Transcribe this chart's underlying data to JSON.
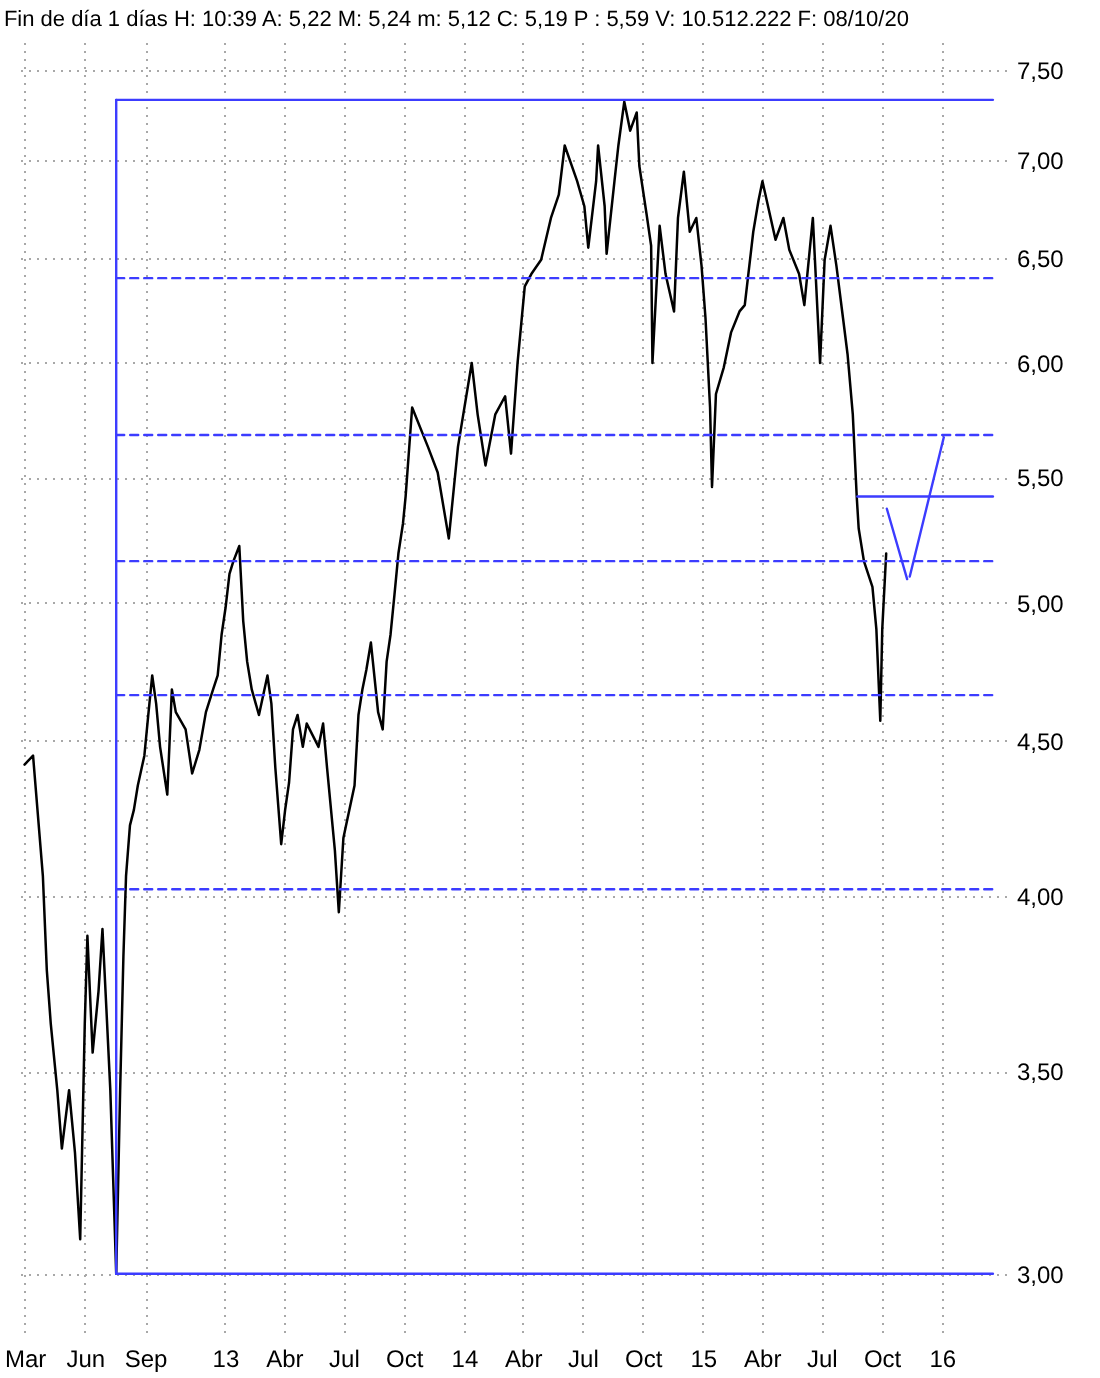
{
  "chart_data": {
    "type": "line",
    "title": "Fin de día 1 días  H: 10:39  A: 5,22  M: 5,24  m: 5,12  C: 5,19  P : 5,59  V: 10.512.222  F: 08/10/20",
    "x": [
      "2012-03-01",
      "2012-03-14",
      "2012-03-29",
      "2012-04-04",
      "2012-04-10",
      "2012-04-20",
      "2012-04-27",
      "2012-05-08",
      "2012-05-17",
      "2012-05-25",
      "2012-06-01",
      "2012-06-05",
      "2012-06-13",
      "2012-06-22",
      "2012-06-28",
      "2012-07-04",
      "2012-07-10",
      "2012-07-19",
      "2012-07-25",
      "2012-07-30",
      "2012-08-03",
      "2012-08-09",
      "2012-08-15",
      "2012-08-21",
      "2012-08-31",
      "2012-09-06",
      "2012-09-12",
      "2012-09-18",
      "2012-09-24",
      "2012-10-05",
      "2012-10-12",
      "2012-10-18",
      "2012-11-02",
      "2012-11-12",
      "2012-11-23",
      "2012-12-03",
      "2012-12-14",
      "2012-12-21",
      "2012-12-27",
      "2013-01-02",
      "2013-01-08",
      "2013-01-14",
      "2013-01-23",
      "2013-01-29",
      "2013-02-04",
      "2013-02-11",
      "2013-02-22",
      "2013-03-07",
      "2013-03-13",
      "2013-03-19",
      "2013-03-28",
      "2013-04-03",
      "2013-04-09",
      "2013-04-15",
      "2013-04-22",
      "2013-04-30",
      "2013-05-06",
      "2013-05-24",
      "2013-05-31",
      "2013-06-06",
      "2013-06-18",
      "2013-06-24",
      "2013-07-01",
      "2013-07-05",
      "2013-07-18",
      "2013-07-24",
      "2013-07-30",
      "2013-08-05",
      "2013-08-12",
      "2013-08-23",
      "2013-08-30",
      "2013-09-05",
      "2013-09-11",
      "2013-09-17",
      "2013-09-23",
      "2013-09-30",
      "2013-10-04",
      "2013-10-14",
      "2013-11-07",
      "2013-11-22",
      "2013-12-09",
      "2013-12-23",
      "2014-01-13",
      "2014-01-22",
      "2014-02-03",
      "2014-02-18",
      "2014-03-05",
      "2014-03-14",
      "2014-03-24",
      "2014-04-04",
      "2014-04-14",
      "2014-04-29",
      "2014-05-14",
      "2014-05-26",
      "2014-06-04",
      "2014-06-23",
      "2014-07-04",
      "2014-07-10",
      "2014-07-22",
      "2014-07-25",
      "2014-08-04",
      "2014-08-07",
      "2014-08-19",
      "2014-08-25",
      "2014-09-03",
      "2014-09-12",
      "2014-09-22",
      "2014-09-26",
      "2014-10-07",
      "2014-10-14",
      "2014-10-16",
      "2014-10-27",
      "2014-11-05",
      "2014-11-18",
      "2014-11-24",
      "2014-12-03",
      "2014-12-12",
      "2014-12-22",
      "2014-12-30",
      "2015-01-05",
      "2015-01-12",
      "2015-01-15",
      "2015-01-21",
      "2015-02-02",
      "2015-02-13",
      "2015-02-26",
      "2015-03-06",
      "2015-03-19",
      "2015-03-27",
      "2015-04-02",
      "2015-04-22",
      "2015-05-04",
      "2015-05-13",
      "2015-05-28",
      "2015-06-05",
      "2015-06-18",
      "2015-06-29",
      "2015-07-06",
      "2015-07-15",
      "2015-07-24",
      "2015-08-03",
      "2015-08-10",
      "2015-08-18",
      "2015-08-24",
      "2015-08-27",
      "2015-09-04",
      "2015-09-17",
      "2015-09-23",
      "2015-09-29",
      "2015-10-02",
      "2015-10-08"
    ],
    "series": [
      {
        "color": "#000000",
        "values": [
          4.42,
          4.45,
          4.06,
          3.78,
          3.63,
          3.45,
          3.3,
          3.45,
          3.29,
          3.08,
          3.63,
          3.88,
          3.55,
          3.72,
          3.9,
          3.67,
          3.45,
          3.0,
          3.45,
          3.82,
          4.06,
          4.22,
          4.27,
          4.35,
          4.45,
          4.59,
          4.73,
          4.63,
          4.48,
          4.32,
          4.68,
          4.6,
          4.54,
          4.39,
          4.47,
          4.6,
          4.68,
          4.73,
          4.88,
          4.98,
          5.11,
          5.16,
          5.22,
          4.93,
          4.78,
          4.68,
          4.59,
          4.73,
          4.63,
          4.41,
          4.16,
          4.27,
          4.36,
          4.54,
          4.59,
          4.48,
          4.56,
          4.48,
          4.56,
          4.41,
          4.14,
          3.95,
          4.18,
          4.22,
          4.35,
          4.59,
          4.68,
          4.75,
          4.85,
          4.6,
          4.54,
          4.78,
          4.88,
          5.03,
          5.19,
          5.31,
          5.42,
          5.8,
          5.63,
          5.52,
          5.25,
          5.63,
          6.0,
          5.77,
          5.55,
          5.77,
          5.85,
          5.6,
          6.0,
          6.36,
          6.42,
          6.49,
          6.7,
          6.82,
          7.08,
          6.89,
          6.76,
          6.55,
          6.89,
          7.08,
          6.76,
          6.52,
          6.89,
          7.08,
          7.32,
          7.16,
          7.26,
          6.97,
          6.72,
          6.56,
          6.0,
          6.66,
          6.42,
          6.24,
          6.7,
          6.94,
          6.63,
          6.7,
          6.46,
          6.21,
          5.8,
          5.46,
          5.86,
          5.98,
          6.14,
          6.24,
          6.27,
          6.63,
          6.79,
          6.89,
          6.59,
          6.7,
          6.54,
          6.42,
          6.27,
          6.7,
          6.0,
          6.49,
          6.66,
          6.46,
          6.21,
          6.04,
          5.77,
          5.42,
          5.29,
          5.16,
          5.06,
          4.9,
          4.57,
          4.9,
          5.19
        ]
      },
      {
        "color": "#3c3cff",
        "x": [
          "2012-07-19",
          "2016-03-19"
        ],
        "values": [
          7.33,
          7.33
        ]
      },
      {
        "color": "#3c3cff",
        "x": [
          "2012-07-19",
          "2016-03-19"
        ],
        "values": [
          6.4,
          6.4
        ],
        "line_style": "dashed"
      },
      {
        "color": "#3c3cff",
        "x": [
          "2012-07-19",
          "2016-03-19"
        ],
        "values": [
          5.68,
          5.68
        ],
        "line_style": "dashed"
      },
      {
        "color": "#3c3cff",
        "x": [
          "2012-07-19",
          "2016-03-19"
        ],
        "values": [
          5.16,
          5.16
        ],
        "line_style": "dashed"
      },
      {
        "color": "#3c3cff",
        "x": [
          "2012-07-19",
          "2016-03-19"
        ],
        "values": [
          4.66,
          4.66
        ],
        "line_style": "dashed"
      },
      {
        "color": "#3c3cff",
        "x": [
          "2012-07-19",
          "2016-03-19"
        ],
        "values": [
          4.02,
          4.02
        ],
        "line_style": "dashed"
      },
      {
        "color": "#3c3cff",
        "x": [
          "2012-07-19",
          "2016-03-19"
        ],
        "values": [
          3.0,
          3.0
        ]
      },
      {
        "color": "#3c3cff",
        "x": [
          "2012-07-19",
          "2012-07-19"
        ],
        "values": [
          3.0,
          7.33
        ]
      },
      {
        "color": "#3c3cff",
        "x": [
          "2015-08-25",
          "2016-03-19"
        ],
        "values": [
          5.42,
          5.42
        ]
      },
      {
        "color": "#3c3cff",
        "x": [
          "2015-10-09",
          "2015-11-09"
        ],
        "values": [
          5.37,
          5.09
        ]
      },
      {
        "color": "#3c3cff",
        "x": [
          "2015-11-13",
          "2016-01-04"
        ],
        "values": [
          5.1,
          5.67
        ]
      }
    ],
    "xlim": [
      "2012-02-20",
      "2016-04-08"
    ],
    "ylim": [
      2.87,
      7.66
    ],
    "xticks": [
      {
        "value": "2012-03",
        "label": "Mar"
      },
      {
        "value": "2012-06",
        "label": "Jun"
      },
      {
        "value": "2012-09",
        "label": "Sep"
      },
      {
        "value": "2013-01",
        "label": "13"
      },
      {
        "value": "2013-04",
        "label": "Abr"
      },
      {
        "value": "2013-07",
        "label": "Jul"
      },
      {
        "value": "2013-10",
        "label": "Oct"
      },
      {
        "value": "2014-01",
        "label": "14"
      },
      {
        "value": "2014-04",
        "label": "Abr"
      },
      {
        "value": "2014-07",
        "label": "Jul"
      },
      {
        "value": "2014-10",
        "label": "Oct"
      },
      {
        "value": "2015-01",
        "label": "15"
      },
      {
        "value": "2015-04",
        "label": "Abr"
      },
      {
        "value": "2015-07",
        "label": "Jul"
      },
      {
        "value": "2015-10",
        "label": "Oct"
      },
      {
        "value": "2016-01",
        "label": "16"
      }
    ],
    "yticks": [
      {
        "value": 3.0,
        "label": "3,00"
      },
      {
        "value": 3.5,
        "label": "3,50"
      },
      {
        "value": 4.0,
        "label": "4,00"
      },
      {
        "value": 4.5,
        "label": "4,50"
      },
      {
        "value": 5.0,
        "label": "5,00"
      },
      {
        "value": 5.5,
        "label": "5,50"
      },
      {
        "value": 6.0,
        "label": "6,00"
      },
      {
        "value": 6.5,
        "label": "6,50"
      },
      {
        "value": 7.0,
        "label": "7,00"
      },
      {
        "value": 7.5,
        "label": "7,50"
      }
    ],
    "log": true,
    "grid": true,
    "line_style": "solid"
  }
}
